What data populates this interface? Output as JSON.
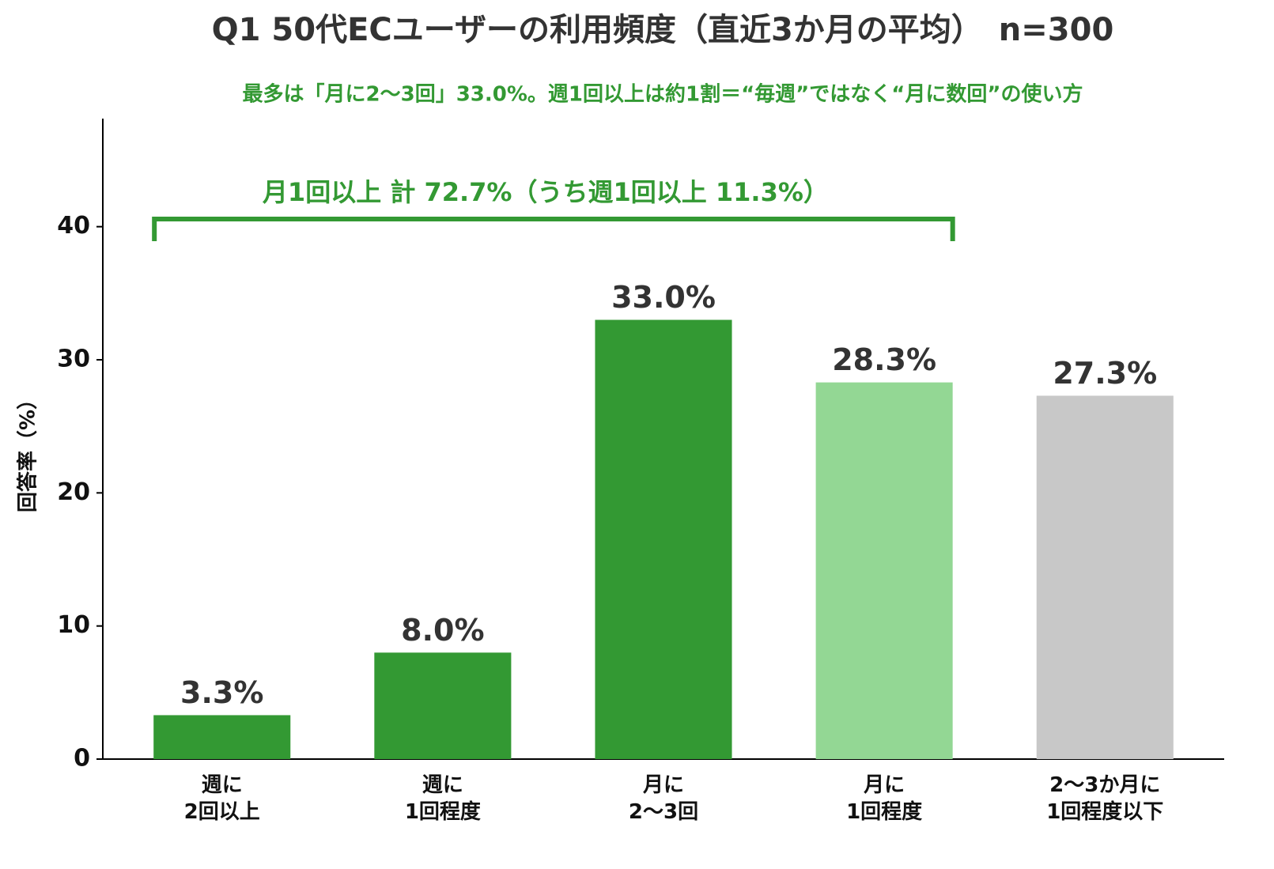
{
  "chart_data": {
    "type": "bar",
    "title": "Q1 50代ECユーザーの利用頻度（直近3か月の平均）　n=300",
    "subtitle": "最多は「月に2〜3回」33.0%。週1回以上は約1割＝“毎週”ではなく“月に数回”の使い方",
    "annotation": "月1回以上 計 72.7%（うち週1回以上 11.3%）",
    "y_label": "回答率（%）",
    "categories": [
      "週に\n2回以上",
      "週に\n1回程度",
      "月に\n2〜3回",
      "月に\n1回程度",
      "2〜3か月に\n1回程度以下"
    ],
    "values": [
      3.3,
      8.0,
      33.0,
      28.3,
      27.3
    ],
    "value_labels": [
      "3.3%",
      "8.0%",
      "33.0%",
      "28.3%",
      "27.3%"
    ],
    "colors": [
      "#339933",
      "#339933",
      "#339933",
      "#93d794",
      "#c8c8c8"
    ],
    "ylim": [
      0,
      48
    ],
    "yticks": [
      0,
      10,
      20,
      30,
      40
    ],
    "grid": false
  }
}
